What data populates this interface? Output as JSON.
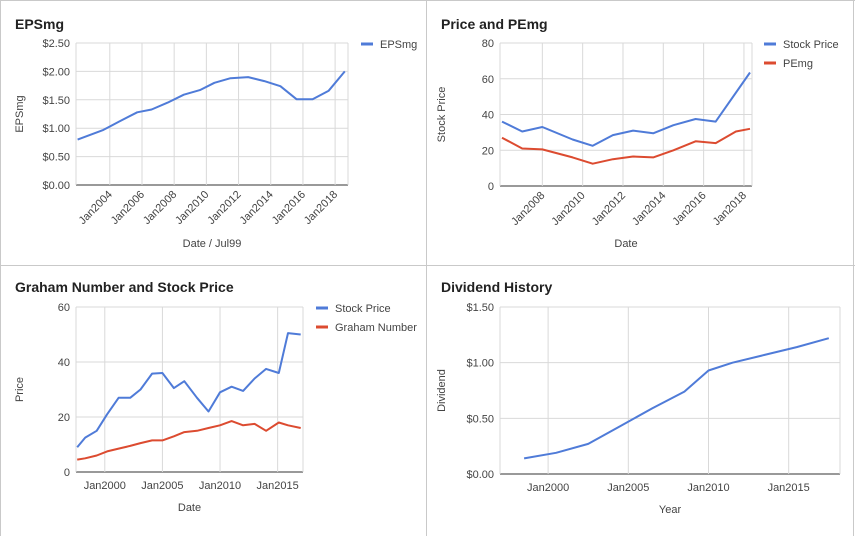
{
  "colors": {
    "blue": "#4f7bd8",
    "red": "#dc4b30",
    "grid": "#d9d9d9",
    "text": "#444444",
    "title": "#222222"
  },
  "chart_data": [
    {
      "type": "line",
      "title": "EPSmg",
      "xlabel": "Date / Jul99",
      "ylabel": "EPSmg",
      "ylim": [
        0,
        2.5
      ],
      "yticks": [
        "$0.00",
        "$0.50",
        "$1.00",
        "$1.50",
        "$2.00",
        "$2.50"
      ],
      "xticks": [
        "Jan2004",
        "Jan2006",
        "Jan2008",
        "Jan2010",
        "Jan2012",
        "Jan2014",
        "Jan2016",
        "Jan2018"
      ],
      "legend": "right",
      "series": [
        {
          "name": "EPSmg",
          "color": "#4f7bd8",
          "x": [
            2002.0,
            2003.6,
            2004.6,
            2005.7,
            2006.6,
            2007.6,
            2008.6,
            2009.6,
            2010.5,
            2011.5,
            2012.6,
            2013.6,
            2014.6,
            2015.6,
            2016.6,
            2017.6,
            2018.6
          ],
          "y": [
            0.8,
            0.97,
            1.12,
            1.28,
            1.33,
            1.45,
            1.59,
            1.67,
            1.8,
            1.88,
            1.9,
            1.83,
            1.74,
            1.51,
            1.51,
            1.66,
            2.0
          ]
        }
      ]
    },
    {
      "type": "line",
      "title": "Price and PEmg",
      "xlabel": "Date",
      "ylabel": "Stock Price",
      "ylim": [
        0,
        80
      ],
      "yticks": [
        "0",
        "20",
        "40",
        "60",
        "80"
      ],
      "xticks": [
        "Jan2008",
        "Jan2010",
        "Jan2012",
        "Jan2014",
        "Jan2016",
        "Jan2018"
      ],
      "legend": "right",
      "series": [
        {
          "name": "Stock Price",
          "color": "#4f7bd8",
          "x": [
            2006.0,
            2007.0,
            2008.0,
            2009.5,
            2010.5,
            2011.5,
            2012.5,
            2013.5,
            2014.5,
            2015.6,
            2016.6,
            2018.3
          ],
          "y": [
            36,
            30.5,
            33,
            26,
            22.5,
            28.5,
            31,
            29.5,
            34,
            37.5,
            36,
            63.5
          ]
        },
        {
          "name": "PEmg",
          "color": "#dc4b30",
          "x": [
            2006.0,
            2007.0,
            2008.0,
            2009.5,
            2010.5,
            2011.5,
            2012.5,
            2013.5,
            2014.5,
            2015.6,
            2016.6,
            2017.6,
            2018.3
          ],
          "y": [
            27,
            21,
            20.5,
            16,
            12.5,
            15,
            16.5,
            16,
            20,
            25,
            24,
            30.5,
            32
          ]
        }
      ]
    },
    {
      "type": "line",
      "title": "Graham Number and Stock Price",
      "xlabel": "Date",
      "ylabel": "Price",
      "ylim": [
        0,
        60
      ],
      "yticks": [
        "0",
        "20",
        "40",
        "60"
      ],
      "xticks": [
        "Jan2000",
        "Jan2005",
        "Jan2010",
        "Jan2015"
      ],
      "legend": "right",
      "series": [
        {
          "name": "Stock Price",
          "color": "#4f7bd8",
          "x": [
            1997.6,
            1998.3,
            1999.3,
            2000.2,
            2001.2,
            2002.2,
            2003.1,
            2004.1,
            2005.0,
            2006.0,
            2006.9,
            2008.0,
            2009.0,
            2010.0,
            2011.0,
            2012.0,
            2013.0,
            2014.0,
            2015.1,
            2015.9,
            2017.0
          ],
          "y": [
            9,
            12.5,
            15,
            21,
            27,
            27,
            30,
            35.8,
            36,
            30.5,
            33,
            27,
            22,
            29,
            31,
            29.5,
            34,
            37.5,
            36,
            50.5,
            50
          ]
        },
        {
          "name": "Graham Number",
          "color": "#dc4b30",
          "x": [
            1997.6,
            1998.3,
            1999.3,
            2000.2,
            2001.2,
            2002.2,
            2003.1,
            2004.1,
            2005.0,
            2006.0,
            2006.9,
            2008.0,
            2009.0,
            2010.0,
            2011.0,
            2012.0,
            2013.0,
            2014.0,
            2015.1,
            2015.9,
            2017.0
          ],
          "y": [
            4.5,
            5,
            6,
            7.5,
            8.5,
            9.5,
            10.5,
            11.5,
            11.5,
            13,
            14.5,
            15,
            16,
            17,
            18.5,
            17,
            17.5,
            15,
            18,
            17,
            16
          ]
        }
      ]
    },
    {
      "type": "line",
      "title": "Dividend History",
      "xlabel": "Year",
      "ylabel": "Dividend",
      "ylim": [
        0,
        1.5
      ],
      "yticks": [
        "$0.00",
        "$0.50",
        "$1.00",
        "$1.50"
      ],
      "xticks": [
        "Jan2000",
        "Jan2005",
        "Jan2010",
        "Jan2015"
      ],
      "series": [
        {
          "name": "",
          "color": "#4f7bd8",
          "x": [
            1998.5,
            2000.5,
            2002.5,
            2004.5,
            2006.5,
            2008.5,
            2010.0,
            2011.5,
            2013.5,
            2015.5,
            2017.5
          ],
          "y": [
            0.14,
            0.19,
            0.27,
            0.43,
            0.59,
            0.74,
            0.93,
            1.0,
            1.07,
            1.14,
            1.22
          ]
        }
      ]
    }
  ]
}
